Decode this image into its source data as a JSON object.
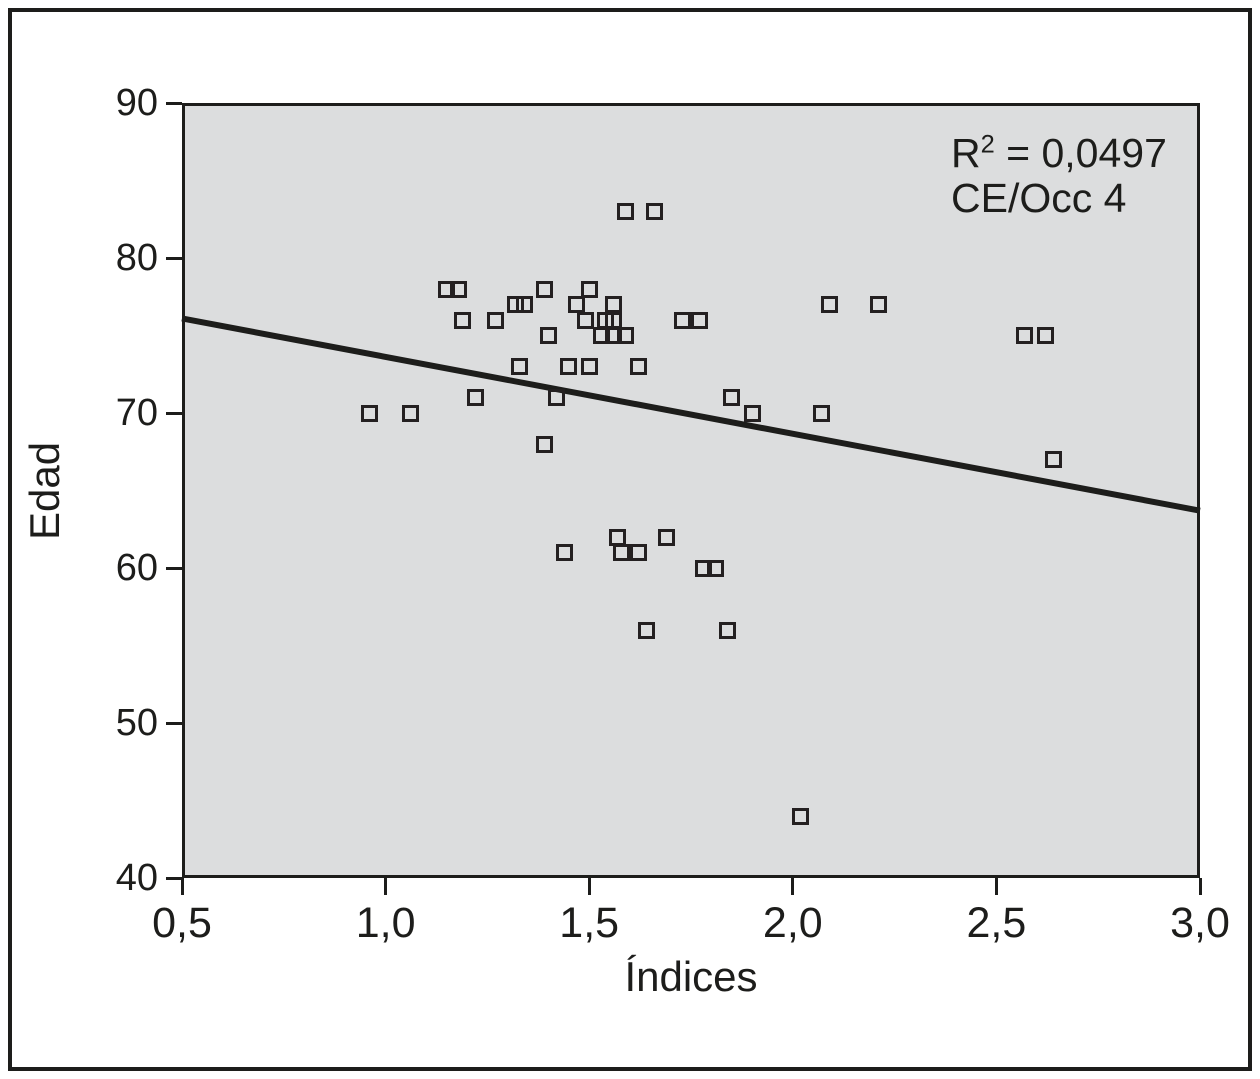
{
  "chart_data": {
    "type": "scatter",
    "title": "",
    "xlabel": "Índices",
    "ylabel": "Edad",
    "xlim": [
      0.5,
      3.0
    ],
    "ylim": [
      40,
      90
    ],
    "grid": false,
    "plot_bg": "#dcddde",
    "ink_color": "#1d1d1b",
    "marker": "open-square",
    "x_ticks": [
      {
        "value": 0.5,
        "label": "0,5"
      },
      {
        "value": 1.0,
        "label": "1,0"
      },
      {
        "value": 1.5,
        "label": "1,5"
      },
      {
        "value": 2.0,
        "label": "2,0"
      },
      {
        "value": 2.5,
        "label": "2,5"
      },
      {
        "value": 3.0,
        "label": "3,0"
      }
    ],
    "y_ticks": [
      {
        "value": 90,
        "label": "90"
      },
      {
        "value": 80,
        "label": "80"
      },
      {
        "value": 70,
        "label": "70"
      },
      {
        "value": 60,
        "label": "60"
      },
      {
        "value": 50,
        "label": "50"
      },
      {
        "value": 40,
        "label": "40"
      }
    ],
    "annotation": {
      "r_base": "R",
      "r_sup": "2",
      "r_rest": " = 0,0497",
      "series": "CE/Occ 4"
    },
    "trendline": {
      "x1": 0.5,
      "y1": 76.1,
      "x2": 3.0,
      "y2": 63.7
    },
    "points": [
      [
        1.59,
        83
      ],
      [
        1.66,
        83
      ],
      [
        1.15,
        78
      ],
      [
        1.18,
        78
      ],
      [
        1.39,
        78
      ],
      [
        1.5,
        78
      ],
      [
        1.32,
        77
      ],
      [
        1.34,
        77
      ],
      [
        1.47,
        77
      ],
      [
        1.56,
        77
      ],
      [
        2.09,
        77
      ],
      [
        2.21,
        77
      ],
      [
        1.19,
        76
      ],
      [
        1.27,
        76
      ],
      [
        1.49,
        76
      ],
      [
        1.54,
        76
      ],
      [
        1.56,
        76
      ],
      [
        1.73,
        76
      ],
      [
        1.77,
        76
      ],
      [
        1.4,
        75
      ],
      [
        1.53,
        75
      ],
      [
        1.56,
        75
      ],
      [
        1.59,
        75
      ],
      [
        2.57,
        75
      ],
      [
        2.62,
        75
      ],
      [
        1.33,
        73
      ],
      [
        1.45,
        73
      ],
      [
        1.5,
        73
      ],
      [
        1.62,
        73
      ],
      [
        1.22,
        71
      ],
      [
        1.42,
        71
      ],
      [
        1.85,
        71
      ],
      [
        0.96,
        70
      ],
      [
        1.06,
        70
      ],
      [
        1.9,
        70
      ],
      [
        2.07,
        70
      ],
      [
        1.39,
        68
      ],
      [
        2.64,
        67
      ],
      [
        1.57,
        62
      ],
      [
        1.69,
        62
      ],
      [
        1.44,
        61
      ],
      [
        1.58,
        61
      ],
      [
        1.62,
        61
      ],
      [
        1.78,
        60
      ],
      [
        1.81,
        60
      ],
      [
        1.64,
        56
      ],
      [
        1.84,
        56
      ],
      [
        2.02,
        44
      ]
    ]
  }
}
